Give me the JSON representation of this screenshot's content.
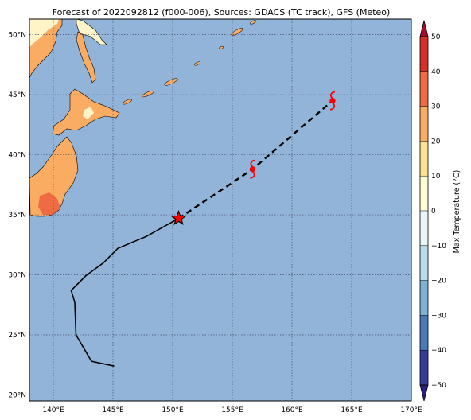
{
  "title": "Forecast of 2022092812 (f000-006), Sources: GDACS (TC track), GFS (Meteo)",
  "map": {
    "lon_range": [
      138,
      170
    ],
    "lat_range": [
      19.5,
      51.3
    ],
    "ocean_color": "#92b4d8",
    "grid": true,
    "lon_ticks": [
      {
        "value": 140,
        "label": "140°E"
      },
      {
        "value": 145,
        "label": "145°E"
      },
      {
        "value": 150,
        "label": "150°E"
      },
      {
        "value": 155,
        "label": "155°E"
      },
      {
        "value": 160,
        "label": "160°E"
      },
      {
        "value": 165,
        "label": "165°E"
      },
      {
        "value": 170,
        "label": "170°E"
      }
    ],
    "lat_ticks": [
      {
        "value": 20,
        "label": "20°N"
      },
      {
        "value": 25,
        "label": "25°N"
      },
      {
        "value": 30,
        "label": "30°N"
      },
      {
        "value": 35,
        "label": "35°N"
      },
      {
        "value": 40,
        "label": "40°N"
      },
      {
        "value": 45,
        "label": "45°N"
      },
      {
        "value": 50,
        "label": "50°N"
      }
    ]
  },
  "track": {
    "past": [
      [
        145.1,
        22.4
      ],
      [
        143.2,
        22.8
      ],
      [
        141.9,
        25.0
      ],
      [
        141.8,
        27.7
      ],
      [
        141.5,
        28.7
      ],
      [
        142.7,
        29.9
      ],
      [
        144.2,
        31.0
      ],
      [
        145.4,
        32.2
      ],
      [
        147.8,
        33.2
      ],
      [
        150.5,
        34.7
      ]
    ],
    "forecast": [
      [
        150.5,
        34.7
      ],
      [
        156.7,
        38.8
      ],
      [
        163.4,
        44.5
      ]
    ],
    "current_position": [
      150.5,
      34.7
    ],
    "storm_symbols": [
      [
        156.7,
        38.8
      ],
      [
        163.4,
        44.5
      ]
    ],
    "marker_color": "#ff0000"
  },
  "colorbar": {
    "label": "Max Temperature (°C)",
    "ticks": [
      "50",
      "40",
      "30",
      "20",
      "10",
      "0",
      "−10",
      "−20",
      "−30",
      "−40",
      "−50"
    ],
    "colors": [
      "#a70b26",
      "#d33128",
      "#ef6b43",
      "#fbac63",
      "#fee192",
      "#fffbd5",
      "#e8f6f8",
      "#b8dceb",
      "#7eb1d3",
      "#4a7bb7",
      "#383a98",
      "#2a1f7e"
    ]
  }
}
